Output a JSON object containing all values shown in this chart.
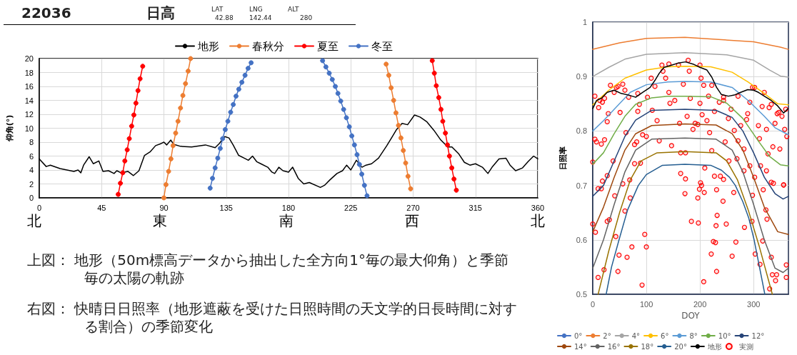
{
  "chart_data": [
    {
      "type": "line",
      "ylabel": "仰角(°)",
      "xlim": [
        0,
        360
      ],
      "ylim": [
        0,
        20
      ],
      "xticks": [
        0,
        45,
        90,
        135,
        180,
        225,
        270,
        315,
        360
      ],
      "yticks": [
        0,
        2,
        4,
        6,
        8,
        10,
        12,
        14,
        16,
        18,
        20
      ],
      "grid": true,
      "legend": "top",
      "annotations": [
        "22036",
        "日高",
        "LAT",
        "LNG",
        "ALT",
        "42.88",
        "142.44",
        "280",
        "上図： 地形（50m標高データから抽出した全方向1°毎の最大仰角）と季節毎の太陽の軌跡",
        "右図： 快晴日日照率（地形遮蔽を受けた日照時間の天文学的日長時間に対する割合）の季節変化",
        "北",
        "東",
        "南",
        "西",
        "北"
      ],
      "series": [
        {
          "name": "地形",
          "color": "#000000",
          "marker": "none",
          "x": [
            0,
            5,
            8,
            15,
            25,
            28,
            30,
            32,
            36,
            39,
            43,
            46,
            50,
            54,
            56,
            59,
            64,
            68,
            72,
            76,
            80,
            84,
            88,
            90,
            92,
            95,
            97,
            102,
            110,
            120,
            127,
            130,
            134,
            137,
            140,
            144,
            148,
            151,
            154,
            157,
            160,
            165,
            168,
            170,
            173,
            176,
            180,
            183,
            187,
            191,
            195,
            203,
            206,
            210,
            215,
            219,
            222,
            225,
            229,
            233,
            236,
            240,
            245,
            251,
            255,
            258,
            262,
            266,
            271,
            275,
            280,
            285,
            290,
            295,
            298,
            303,
            307,
            311,
            315,
            320,
            324,
            327,
            332,
            337,
            340,
            344,
            349,
            353,
            357,
            360
          ],
          "values": [
            5.6,
            4.5,
            4.7,
            4.2,
            3.8,
            4.0,
            3.6,
            4.7,
            5.9,
            4.9,
            5.3,
            3.8,
            3.9,
            3.5,
            3.9,
            3.6,
            3.8,
            3.2,
            3.9,
            6.1,
            6.6,
            7.5,
            7.8,
            8.0,
            7.6,
            8.3,
            7.7,
            7.4,
            7.3,
            7.6,
            7.2,
            7.8,
            8.8,
            8.6,
            7.6,
            6.1,
            5.7,
            5.4,
            6.0,
            5.2,
            4.9,
            4.4,
            3.7,
            3.5,
            4.4,
            3.9,
            3.7,
            4.4,
            2.8,
            2.0,
            2.2,
            1.5,
            1.8,
            2.6,
            3.5,
            3.9,
            4.7,
            4.0,
            5.4,
            4.4,
            4.7,
            4.9,
            5.7,
            7.5,
            8.8,
            9.8,
            10.7,
            10.5,
            11.9,
            11.6,
            10.9,
            9.7,
            8.3,
            7.3,
            7.3,
            6.3,
            5.1,
            4.7,
            4.9,
            4.4,
            3.5,
            4.4,
            5.6,
            5.7,
            4.7,
            3.9,
            4.3,
            5.2,
            6.0,
            5.6
          ]
        },
        {
          "name": "春秋分",
          "color": "#ed7d31",
          "marker": "circle",
          "x": [
            90.0,
            91.5,
            93.4,
            95.1,
            96.6,
            98.5,
            100.2,
            102.0,
            103.7,
            105.6,
            107.5,
            109.3,
            180,
            250.5,
            252.4,
            254.1,
            255.9,
            257.6,
            259.4,
            261.2,
            262.9,
            264.6,
            266.3,
            268.2
          ],
          "values": [
            0.0,
            1.9,
            3.8,
            5.6,
            7.5,
            9.3,
            11.0,
            12.9,
            14.7,
            16.4,
            18.2,
            20.0,
            null,
            19.2,
            17.6,
            15.8,
            14.0,
            12.2,
            10.4,
            8.6,
            6.8,
            5.0,
            3.1,
            1.3
          ]
        },
        {
          "name": "夏至",
          "color": "#ff0000",
          "marker": "circle",
          "x": [
            57.0,
            58.6,
            60.3,
            61.8,
            63.5,
            65.0,
            66.7,
            68.3,
            69.8,
            71.3,
            72.8,
            74.7,
            180,
            283.8,
            285.3,
            286.7,
            288.5,
            290.1,
            291.4,
            293.3,
            294.8,
            296.2,
            297.9,
            299.5,
            301.2
          ],
          "values": [
            0.5,
            2.1,
            3.6,
            5.3,
            6.9,
            8.5,
            10.3,
            11.9,
            13.6,
            15.4,
            17.1,
            18.9,
            null,
            19.7,
            17.9,
            16.1,
            14.4,
            12.7,
            11.0,
            9.3,
            7.6,
            6.0,
            4.3,
            2.7,
            1.1
          ]
        },
        {
          "name": "冬至",
          "color": "#4472c4",
          "marker": "circle",
          "x": [
            123.4,
            125.1,
            127.0,
            128.9,
            130.7,
            132.4,
            134.3,
            136.2,
            138.2,
            140.1,
            142.1,
            144.1,
            146.3,
            148.6,
            150.8,
            153.0,
            180,
            204.6,
            207.0,
            209.4,
            211.6,
            213.8,
            215.7,
            217.7,
            219.8,
            221.8,
            223.9,
            225.7,
            227.6,
            229.5,
            231.2,
            232.9,
            234.8,
            236.7
          ],
          "values": [
            1.4,
            2.8,
            4.3,
            5.7,
            7.1,
            8.5,
            9.8,
            11.0,
            12.3,
            13.4,
            14.6,
            15.6,
            16.6,
            17.6,
            18.6,
            19.4,
            null,
            19.7,
            18.8,
            17.9,
            17.0,
            16.0,
            15.0,
            13.9,
            12.7,
            11.5,
            10.2,
            8.9,
            7.6,
            6.2,
            4.8,
            3.4,
            1.8,
            0.3
          ]
        }
      ]
    },
    {
      "type": "line",
      "xlabel": "DOY",
      "ylabel": "日照率",
      "xlim": [
        0,
        365
      ],
      "ylim": [
        0.5,
        1
      ],
      "xticks": [
        0,
        100,
        200,
        300
      ],
      "yticks": [
        0.5,
        0.6,
        0.7,
        0.8,
        0.9,
        1
      ],
      "grid": true,
      "legend": "bottom",
      "series": [
        {
          "name": "0°",
          "color": "#4472c4",
          "marker": "none"
        },
        {
          "name": "2°",
          "color": "#ed7d31",
          "marker": "none",
          "x": [
            0,
            50,
            100,
            172,
            300,
            350,
            365
          ],
          "values": [
            0.95,
            0.962,
            0.97,
            0.972,
            0.964,
            0.954,
            0.95
          ]
        },
        {
          "name": "4°",
          "color": "#a5a5a5",
          "marker": "none",
          "x": [
            0,
            30,
            60,
            100,
            172,
            250,
            300,
            330,
            350,
            365
          ],
          "values": [
            0.9,
            0.917,
            0.932,
            0.941,
            0.944,
            0.94,
            0.93,
            0.912,
            0.901,
            0.899
          ]
        },
        {
          "name": "6°",
          "color": "#ffc000",
          "marker": "none",
          "x": [
            0,
            30,
            60,
            100,
            140,
            172,
            220,
            260,
            290,
            320,
            345,
            365
          ],
          "values": [
            0.848,
            0.875,
            0.897,
            0.912,
            0.918,
            0.919,
            0.918,
            0.908,
            0.89,
            0.869,
            0.85,
            0.848
          ]
        },
        {
          "name": "8°",
          "color": "#5b9bd5",
          "marker": "none",
          "x": [
            0,
            20,
            40,
            70,
            100,
            140,
            172,
            220,
            260,
            290,
            320,
            340,
            365
          ],
          "values": [
            0.8,
            0.819,
            0.84,
            0.871,
            0.885,
            0.89,
            0.891,
            0.89,
            0.88,
            0.856,
            0.827,
            0.806,
            0.793
          ]
        },
        {
          "name": "10°",
          "color": "#70ad47",
          "marker": "none",
          "x": [
            0,
            20,
            40,
            60,
            80,
            110,
            140,
            172,
            220,
            250,
            280,
            310,
            330,
            350,
            365
          ],
          "values": [
            0.739,
            0.76,
            0.795,
            0.827,
            0.849,
            0.861,
            0.864,
            0.864,
            0.863,
            0.851,
            0.823,
            0.78,
            0.753,
            0.738,
            0.736
          ]
        },
        {
          "name": "12°",
          "color": "#264478",
          "marker": "none",
          "x": [
            0,
            20,
            40,
            60,
            80,
            110,
            172,
            230,
            260,
            280,
            300,
            320,
            340,
            355,
            365
          ],
          "values": [
            0.68,
            0.7,
            0.745,
            0.79,
            0.82,
            0.838,
            0.84,
            0.838,
            0.825,
            0.8,
            0.76,
            0.715,
            0.685,
            0.675,
            0.68
          ]
        },
        {
          "name": "14°",
          "color": "#9e480e",
          "marker": "none",
          "x": [
            0,
            20,
            40,
            60,
            80,
            110,
            172,
            230,
            260,
            280,
            300,
            320,
            345,
            365
          ],
          "values": [
            0.615,
            0.66,
            0.715,
            0.765,
            0.795,
            0.81,
            0.813,
            0.811,
            0.795,
            0.765,
            0.715,
            0.66,
            0.615,
            0.61
          ]
        },
        {
          "name": "16°",
          "color": "#636363",
          "marker": "none",
          "x": [
            0,
            20,
            40,
            60,
            80,
            110,
            172,
            230,
            260,
            280,
            300,
            320,
            340,
            355,
            365
          ],
          "values": [
            0.548,
            0.6,
            0.665,
            0.725,
            0.765,
            0.785,
            0.787,
            0.785,
            0.765,
            0.725,
            0.665,
            0.6,
            0.548,
            0.54,
            0.548
          ]
        },
        {
          "name": "18°",
          "color": "#997300",
          "marker": "none",
          "x": [
            10,
            30,
            50,
            70,
            90,
            120,
            172,
            230,
            250,
            270,
            290,
            310,
            335
          ],
          "values": [
            0.5,
            0.58,
            0.65,
            0.71,
            0.745,
            0.76,
            0.762,
            0.76,
            0.745,
            0.71,
            0.655,
            0.59,
            0.5
          ]
        },
        {
          "name": "20°",
          "color": "#255e91",
          "marker": "none",
          "x": [
            25,
            35,
            49,
            65,
            85,
            100,
            130,
            172,
            220,
            240,
            255,
            266,
            280,
            291,
            301,
            311,
            321
          ],
          "values": [
            0.5,
            0.55,
            0.6,
            0.655,
            0.7,
            0.72,
            0.737,
            0.739,
            0.737,
            0.728,
            0.715,
            0.7,
            0.67,
            0.64,
            0.6,
            0.55,
            0.5
          ]
        },
        {
          "name": "地形",
          "color": "#000000",
          "marker": "none",
          "x": [
            0,
            7,
            16,
            27,
            40,
            53,
            67,
            80,
            93,
            107,
            116,
            124,
            133,
            147,
            160,
            173,
            187,
            200,
            213,
            222,
            231,
            240,
            253,
            264,
            276,
            289,
            300,
            309,
            320,
            333,
            344,
            356,
            364
          ],
          "values": [
            0.841,
            0.856,
            0.86,
            0.871,
            0.875,
            0.869,
            0.866,
            0.862,
            0.871,
            0.88,
            0.893,
            0.906,
            0.917,
            0.921,
            0.925,
            0.927,
            0.923,
            0.917,
            0.912,
            0.899,
            0.88,
            0.867,
            0.864,
            0.866,
            0.871,
            0.876,
            0.875,
            0.871,
            0.864,
            0.856,
            0.847,
            0.833,
            0.841
          ]
        },
        {
          "name": "実測",
          "type": "scatter",
          "color": "#ff0000",
          "marker": "circle",
          "x": [
            0,
            4,
            7,
            16,
            22,
            13,
            11,
            22,
            27,
            29,
            33,
            40,
            47,
            56,
            51,
            62,
            67,
            78,
            82,
            84,
            87,
            93,
            100,
            102,
            109,
            111,
            116,
            120,
            124,
            131,
            136,
            142,
            144,
            147,
            153,
            162,
            164,
            173,
            169,
            176,
            180,
            182,
            187,
            191,
            196,
            200,
            204,
            202,
            207,
            213,
            216,
            218,
            222,
            227,
            236,
            244,
            247,
            253,
            258,
            264,
            271,
            276,
            282,
            287,
            289,
            293,
            302,
            309,
            311,
            316,
            324,
            327,
            329,
            333,
            336,
            340,
            344,
            349,
            353,
            358,
            362,
            356,
            333,
            324,
            313,
            302,
            293,
            282,
            269,
            254,
            244,
            238,
            227,
            209,
            173,
            164,
            78,
            89,
            69,
            27,
            18,
            38,
            0,
            5,
            10,
            16,
            10,
            21,
            27,
            31,
            41,
            43,
            47,
            49,
            56,
            60,
            64,
            70,
            73,
            92,
            97,
            100,
            172,
            184,
            196,
            197,
            199,
            201,
            203,
            208,
            207,
            221,
            225,
            229,
            230,
            231,
            231,
            232,
            243,
            249,
            260,
            263,
            267,
            283,
            297,
            298,
            303,
            312,
            317,
            318,
            323,
            325,
            330,
            333,
            335,
            341,
            343,
            361,
            361,
            356,
            337,
            4,
            18,
            44,
            60,
            84,
            129,
            142,
            160,
            178,
            200,
            222,
            244,
            271,
            298,
            320,
            347,
            360
          ],
          "values": [
            0.743,
            0.785,
            0.78,
            0.776,
            0.784,
            0.856,
            0.843,
            0.86,
            0.817,
            0.832,
            0.884,
            0.871,
            0.882,
            0.886,
            0.834,
            0.797,
            0.862,
            0.775,
            0.78,
            0.836,
            0.849,
            0.793,
            0.79,
            0.862,
            0.897,
            0.838,
            0.882,
            0.819,
            0.782,
            0.91,
            0.897,
            0.871,
            0.851,
            0.773,
            0.856,
            0.814,
            0.76,
            0.76,
            0.886,
            0.827,
            0.91,
            0.86,
            0.803,
            0.814,
            0.812,
            0.851,
            0.83,
            0.897,
            0.884,
            0.819,
            0.864,
            0.797,
            0.764,
            0.836,
            0.853,
            0.862,
            0.78,
            0.823,
            0.84,
            0.801,
            0.782,
            0.81,
            0.767,
            0.821,
            0.832,
            0.853,
            0.88,
            0.81,
            0.786,
            0.845,
            0.803,
            0.758,
            0.843,
            0.849,
            0.771,
            0.814,
            0.832,
            0.767,
            0.827,
            0.803,
            0.79,
            0.701,
            0.706,
            0.727,
            0.736,
            0.715,
            0.736,
            0.727,
            0.749,
            0.745,
            0.711,
            0.717,
            0.717,
            0.732,
            0.712,
            0.722,
            0.74,
            0.741,
            0.71,
            0.718,
            0.708,
            0.745,
            0.629,
            0.614,
            0.694,
            0.694,
            0.531,
            0.545,
            0.634,
            0.637,
            0.681,
            0.606,
            0.542,
            0.572,
            0.703,
            0.653,
            0.568,
            0.677,
            0.587,
            0.517,
            0.61,
            0.587,
            0.685,
            0.634,
            0.677,
            0.631,
            0.693,
            0.705,
            0.7,
            0.687,
            0.523,
            0.574,
            0.597,
            0.595,
            0.626,
            0.692,
            0.542,
            0.645,
            0.671,
            0.629,
            0.57,
            0.687,
            0.596,
            0.623,
            0.634,
            0.682,
            0.574,
            0.555,
            0.598,
            0.692,
            0.655,
            0.638,
            0.51,
            0.568,
            0.536,
            0.525,
            0.536,
            0.554,
            0.531,
            0.701,
            0.704,
            0.864,
            0.853,
            0.88,
            0.875,
            0.869,
            0.921,
            0.923,
            0.921,
            0.93,
            0.921,
            0.884,
            0.856,
            0.864,
            0.88,
            0.871,
            0.834,
            0.84
          ]
        }
      ]
    }
  ]
}
